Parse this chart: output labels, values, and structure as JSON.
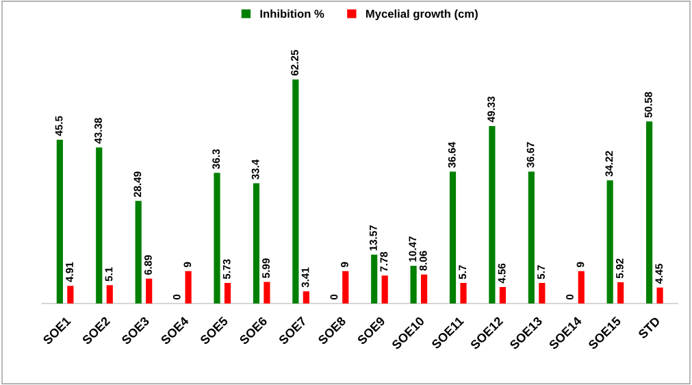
{
  "chart_data": {
    "type": "bar",
    "categories": [
      "SOE1",
      "SOE2",
      "SOE3",
      "SOE4",
      "SOE5",
      "SOE6",
      "SOE7",
      "SOE8",
      "SOE9",
      "SOE10",
      "SOE11",
      "SOE12",
      "SOE13",
      "SOE14",
      "SOE15",
      "STD"
    ],
    "series": [
      {
        "name": "Inhibition %",
        "color": "#008000",
        "values": [
          45.5,
          43.38,
          28.49,
          0,
          36.3,
          33.4,
          62.25,
          0,
          13.57,
          10.47,
          36.64,
          49.33,
          36.67,
          0,
          34.22,
          50.58
        ]
      },
      {
        "name": "Mycelial growth (cm)",
        "color": "#ff0000",
        "values": [
          4.91,
          5.1,
          6.89,
          9,
          5.73,
          5.99,
          3.41,
          9,
          7.78,
          8.06,
          5.7,
          4.56,
          5.7,
          9,
          5.92,
          4.45
        ]
      }
    ],
    "data_labels": true,
    "legend": "top",
    "grid": false
  }
}
